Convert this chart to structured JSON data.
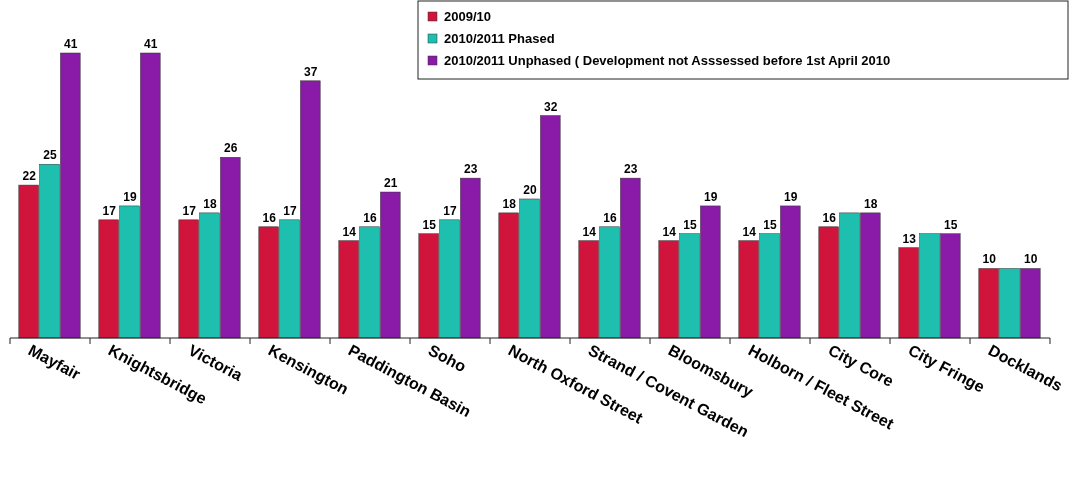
{
  "chart_data": {
    "type": "bar",
    "categories": [
      "Mayfair",
      "Knightsbridge",
      "Victoria",
      "Kensington",
      "Paddington Basin",
      "Soho",
      "North Oxford Street",
      "Strand / Covent Garden",
      "Bloomsbury",
      "Holborn / Fleet Street",
      "City Core",
      "City Fringe",
      "Docklands"
    ],
    "series": [
      {
        "name": "2009/10",
        "color": "#d0143c",
        "values": [
          22,
          17,
          17,
          16,
          14,
          15,
          18,
          14,
          14,
          14,
          16,
          13,
          10
        ],
        "value_labels": [
          "22",
          "17",
          "17",
          "16",
          "14",
          "15",
          "18",
          "14",
          "14",
          "14",
          "16",
          "13",
          "10"
        ]
      },
      {
        "name": "2010/2011 Phased",
        "color": "#1fbfb0",
        "values": [
          25,
          19,
          18,
          17,
          16,
          17,
          20,
          16,
          15,
          15,
          18,
          15,
          10
        ],
        "value_labels": [
          "25",
          "19",
          "18",
          "17",
          "16",
          "17",
          "20",
          "16",
          "15",
          "15",
          null,
          null,
          null
        ]
      },
      {
        "name": "2010/2011 Unphased ( Development not Asssessed before 1st April 2010",
        "color": "#8a1aa8",
        "values": [
          41,
          41,
          26,
          37,
          21,
          23,
          32,
          23,
          19,
          19,
          18,
          15,
          10
        ],
        "value_labels": [
          "41",
          "41",
          "26",
          "37",
          "21",
          "23",
          "32",
          "23",
          "19",
          "19",
          "18",
          "15",
          "10"
        ]
      }
    ],
    "legend": "top right",
    "grid": false
  }
}
